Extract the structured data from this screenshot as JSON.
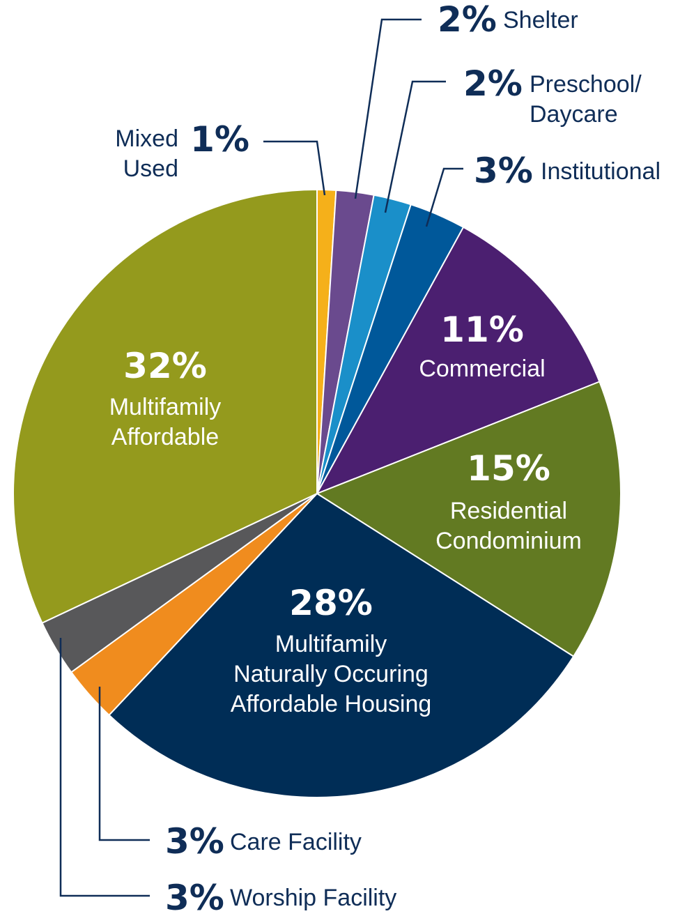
{
  "chart_data": {
    "type": "pie",
    "categories": [
      "Mixed\nUsed",
      "Shelter",
      "Preschool/\nDaycare",
      "Institutional",
      "Commercial",
      "Residential\nCondominium",
      "Multifamily\nNaturally Occuring\nAffordable Housing",
      "Care Facility",
      "Worship Facility",
      "Multifamily\nAffordable"
    ],
    "values": [
      1,
      2,
      2,
      3,
      11,
      15,
      28,
      3,
      3,
      32
    ],
    "value_labels": [
      "1%",
      "2%",
      "2%",
      "3%",
      "11%",
      "15%",
      "28%",
      "3%",
      "3%",
      "32%"
    ],
    "colors": [
      "#f5b01a",
      "#6a4a8e",
      "#1a8fc9",
      "#00589a",
      "#4b1f70",
      "#627a22",
      "#002d56",
      "#f08c1e",
      "#58585a",
      "#949a1d"
    ]
  }
}
